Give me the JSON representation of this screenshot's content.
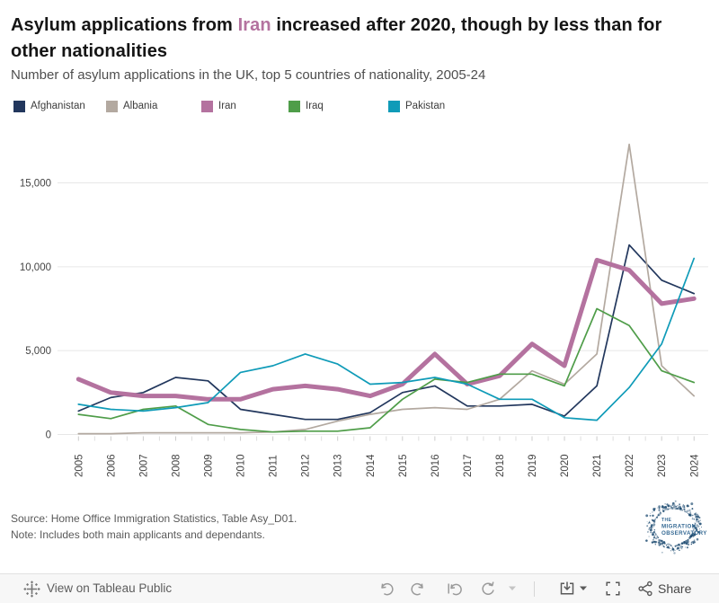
{
  "header": {
    "title_parts": {
      "prefix": "Asylum applications from ",
      "highlight": "Iran",
      "suffix": " increased after 2020, though by less than for other nationalities",
      "highlight_color": "#b4729f"
    },
    "subtitle": "Number of asylum applications in the UK, top 5 countries of nationality, 2005-24"
  },
  "legend": {
    "items": [
      {
        "label": "Afghanistan",
        "color": "#22375d"
      },
      {
        "label": "Albania",
        "color": "#b3a9a0"
      },
      {
        "label": "Iran",
        "color": "#b4729f"
      },
      {
        "label": "Iraq",
        "color": "#4f9d49"
      },
      {
        "label": "Pakistan",
        "color": "#0f9bb8"
      }
    ]
  },
  "chart_data": {
    "type": "line",
    "title": "Asylum applications from Iran increased after 2020, though by less than for other nationalities",
    "subtitle": "Number of asylum applications in the UK, top 5 countries of nationality, 2005-24",
    "x": [
      2005,
      2006,
      2007,
      2008,
      2009,
      2010,
      2011,
      2012,
      2013,
      2014,
      2015,
      2016,
      2017,
      2018,
      2019,
      2020,
      2021,
      2022,
      2023,
      2024
    ],
    "series": [
      {
        "name": "Afghanistan",
        "color": "#22375d",
        "emphasis": false,
        "values": [
          1400,
          2200,
          2500,
          3400,
          3200,
          1500,
          1200,
          900,
          900,
          1300,
          2500,
          2900,
          1700,
          1700,
          1800,
          1100,
          2900,
          11300,
          9200,
          8400
        ]
      },
      {
        "name": "Albania",
        "color": "#b3a9a0",
        "emphasis": false,
        "values": [
          50,
          50,
          100,
          100,
          100,
          100,
          150,
          300,
          800,
          1200,
          1500,
          1600,
          1500,
          2100,
          3800,
          3000,
          4800,
          17300,
          4100,
          2300
        ]
      },
      {
        "name": "Iran",
        "color": "#b4729f",
        "emphasis": true,
        "values": [
          3300,
          2500,
          2300,
          2300,
          2100,
          2100,
          2700,
          2900,
          2700,
          2300,
          3000,
          4800,
          3000,
          3500,
          5400,
          4100,
          10400,
          9800,
          7800,
          8100
        ]
      },
      {
        "name": "Iraq",
        "color": "#4f9d49",
        "emphasis": false,
        "values": [
          1200,
          950,
          1500,
          1700,
          600,
          300,
          150,
          200,
          200,
          400,
          2100,
          3300,
          3100,
          3600,
          3600,
          2900,
          7500,
          6500,
          3800,
          3100
        ]
      },
      {
        "name": "Pakistan",
        "color": "#0f9bb8",
        "emphasis": false,
        "values": [
          1800,
          1500,
          1400,
          1600,
          1900,
          3700,
          4100,
          4800,
          4200,
          3000,
          3100,
          3400,
          3000,
          2100,
          2100,
          1000,
          850,
          2800,
          5400,
          10500
        ]
      }
    ],
    "yticks": [
      0,
      5000,
      10000,
      15000
    ],
    "ylim": [
      0,
      17500
    ],
    "grid": true,
    "legend_position": "top"
  },
  "footer": {
    "source": "Source: Home Office Immigration Statistics, Table Asy_D01.",
    "note": "Note: Includes both main applicants and dependants.",
    "logo": {
      "lines": [
        "THE",
        "MIGRATION",
        "OBSERVATORY"
      ],
      "dot_color": "#1c4a70",
      "text_color": "#366a94"
    }
  },
  "toolbar": {
    "view_label": "View on Tableau Public",
    "share_label": "Share"
  }
}
